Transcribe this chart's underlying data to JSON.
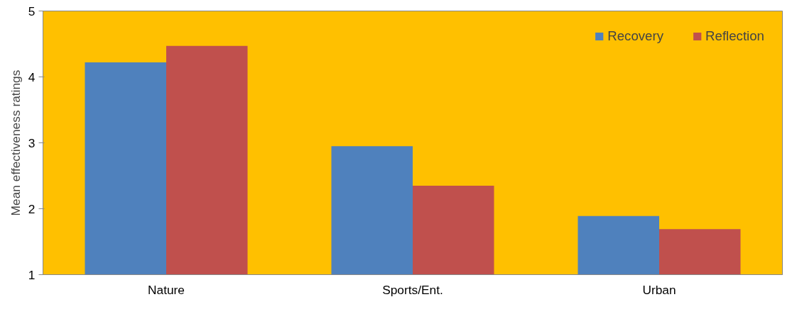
{
  "chart_data": {
    "type": "bar",
    "ylabel": "Mean effectiveness ratings",
    "categories": [
      "Nature",
      "Sports/Ent.",
      "Urban"
    ],
    "series": [
      {
        "name": "Recovery",
        "color": "#4f81bd",
        "values": [
          4.22,
          2.95,
          1.89
        ]
      },
      {
        "name": "Reflection",
        "color": "#c0504d",
        "values": [
          4.47,
          2.35,
          1.69
        ]
      }
    ],
    "ylim": [
      1,
      5
    ],
    "yticks": [
      1,
      2,
      3,
      4,
      5
    ],
    "grid": false,
    "legend": "top right"
  }
}
